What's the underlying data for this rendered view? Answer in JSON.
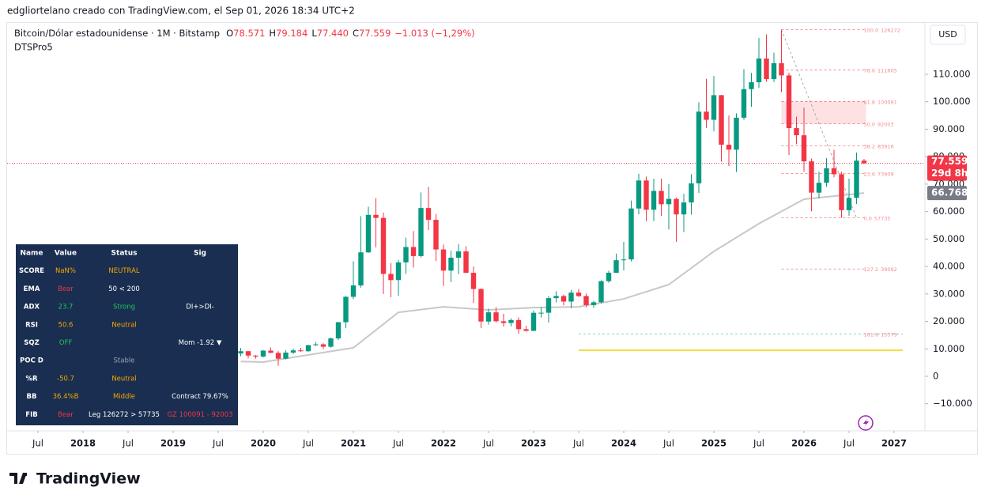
{
  "header": {
    "caption": "edgliortelano creado con TradingView.com, el Sep 01, 2026 18:34 UTC+2",
    "brand": "TradingView"
  },
  "chart_data": {
    "type": "candlestick",
    "legend": {
      "symbol": "Bitcoin/Dólar estadounidense · 1M · Bitstamp",
      "ohlc": [
        {
          "key": "O",
          "value": "78.571"
        },
        {
          "key": "H",
          "value": "79.184"
        },
        {
          "key": "L",
          "value": "77.440"
        },
        {
          "key": "C",
          "value": "77.559"
        }
      ],
      "change": "−1.013 (−1,29%)",
      "indicator": "DTSPro5"
    },
    "currency": "USD",
    "up_color": "#089981",
    "down_color": "#f23645",
    "x": [
      "2019-10",
      "2019-11",
      "2019-12",
      "2020-01",
      "2020-02",
      "2020-03",
      "2020-04",
      "2020-05",
      "2020-06",
      "2020-07",
      "2020-08",
      "2020-09",
      "2020-10",
      "2020-11",
      "2020-12",
      "2021-01",
      "2021-02",
      "2021-03",
      "2021-04",
      "2021-05",
      "2021-06",
      "2021-07",
      "2021-08",
      "2021-09",
      "2021-10",
      "2021-11",
      "2021-12",
      "2022-01",
      "2022-02",
      "2022-03",
      "2022-04",
      "2022-05",
      "2022-06",
      "2022-07",
      "2022-08",
      "2022-09",
      "2022-10",
      "2022-11",
      "2022-12",
      "2023-01",
      "2023-02",
      "2023-03",
      "2023-04",
      "2023-05",
      "2023-06",
      "2023-07",
      "2023-08",
      "2023-09",
      "2023-10",
      "2023-11",
      "2023-12",
      "2024-01",
      "2024-02",
      "2024-03",
      "2024-04",
      "2024-05",
      "2024-06",
      "2024-07",
      "2024-08",
      "2024-09",
      "2024-10",
      "2024-11",
      "2024-12",
      "2025-01",
      "2025-02",
      "2025-03",
      "2025-04",
      "2025-05",
      "2025-06",
      "2025-07",
      "2025-08",
      "2025-09",
      "2025-10",
      "2025-11",
      "2025-12",
      "2026-01",
      "2026-02",
      "2026-03",
      "2026-04",
      "2026-05",
      "2026-06",
      "2026-07",
      "2026-08",
      "2026-09"
    ],
    "open": [
      8300,
      9150,
      7550,
      7190,
      9350,
      8540,
      6410,
      8630,
      9450,
      9140,
      11340,
      11650,
      10780,
      13800,
      19700,
      28950,
      33100,
      45150,
      58800,
      57700,
      37300,
      35050,
      41500,
      47100,
      43800,
      61300,
      57000,
      46200,
      38500,
      43200,
      45500,
      37700,
      31800,
      19950,
      23300,
      20050,
      19420,
      20500,
      17170,
      16550,
      23130,
      23150,
      28470,
      29250,
      27220,
      30480,
      29230,
      25940,
      26960,
      34660,
      37720,
      42280,
      42580,
      61130,
      71330,
      60670,
      67530,
      62680,
      64620,
      58970,
      63330,
      70290,
      96400,
      93430,
      102400,
      84350,
      82550,
      94200,
      104600,
      107100,
      115750,
      108250,
      114050,
      109600,
      90400,
      87800,
      78300,
      66900,
      70500,
      75800,
      73600,
      60500,
      65000,
      78571
    ],
    "high": [
      10350,
      9270,
      7750,
      9580,
      10500,
      9190,
      9470,
      10080,
      10380,
      11450,
      12480,
      12060,
      14100,
      19850,
      29300,
      41950,
      58350,
      61800,
      64900,
      59600,
      41300,
      42400,
      50500,
      52900,
      67000,
      69000,
      59100,
      47990,
      45800,
      48200,
      47400,
      40000,
      31990,
      24650,
      25200,
      22800,
      21100,
      21480,
      18390,
      23960,
      25250,
      29200,
      31000,
      29820,
      31390,
      31800,
      30200,
      27480,
      35000,
      38430,
      44700,
      48970,
      64000,
      73800,
      72800,
      72000,
      72000,
      70000,
      65100,
      66500,
      73620,
      99800,
      108350,
      109350,
      102500,
      95000,
      95800,
      111900,
      110500,
      123200,
      124500,
      117900,
      126272,
      110600,
      94600,
      97900,
      79300,
      74500,
      79500,
      82500,
      74500,
      72000,
      81500,
      79184
    ],
    "low": [
      7300,
      6500,
      6430,
      6850,
      8450,
      3850,
      6150,
      8100,
      8900,
      8960,
      10980,
      9850,
      10430,
      13200,
      17580,
      28130,
      32300,
      44950,
      47000,
      30000,
      28800,
      29300,
      37300,
      39600,
      43300,
      53250,
      42000,
      32950,
      34300,
      37200,
      37600,
      26700,
      17600,
      18800,
      19600,
      18150,
      18200,
      15480,
      16280,
      16500,
      21400,
      19570,
      26940,
      25810,
      24800,
      28860,
      25200,
      24900,
      26540,
      34100,
      37600,
      38500,
      41880,
      59000,
      56500,
      56550,
      58400,
      53500,
      49000,
      52550,
      58900,
      66800,
      90500,
      89250,
      78200,
      76600,
      74400,
      93400,
      98200,
      105100,
      107300,
      107200,
      103500,
      80600,
      84500,
      74500,
      60100,
      64800,
      69000,
      72500,
      57735,
      58500,
      62800,
      77440
    ],
    "close": [
      9150,
      7550,
      7190,
      9350,
      8540,
      6410,
      8630,
      9450,
      9140,
      11340,
      11650,
      10780,
      13800,
      19700,
      28950,
      33100,
      45150,
      58800,
      57700,
      37300,
      35050,
      41500,
      47100,
      43800,
      61300,
      57000,
      46200,
      38500,
      43200,
      45500,
      37700,
      31800,
      19950,
      23300,
      20050,
      19420,
      20500,
      17170,
      16550,
      23130,
      23150,
      28470,
      29250,
      27220,
      30480,
      29230,
      25940,
      26960,
      34660,
      37720,
      42280,
      42580,
      61130,
      71330,
      60670,
      67530,
      62680,
      64620,
      58970,
      63330,
      70290,
      96400,
      93430,
      102400,
      84350,
      82550,
      94200,
      104600,
      107100,
      115750,
      108250,
      114050,
      109600,
      90400,
      87800,
      78300,
      66900,
      70500,
      75800,
      73600,
      60500,
      65000,
      78571,
      77559
    ],
    "ma": {
      "color": "#c8c8c8",
      "x": [
        "2019-10",
        "2020-01",
        "2021-01",
        "2021-07",
        "2022-01",
        "2022-07",
        "2023-01",
        "2023-07",
        "2024-01",
        "2024-07",
        "2025-01",
        "2025-07",
        "2026-01",
        "2026-09"
      ],
      "values": [
        5400,
        5200,
        10400,
        23300,
        25300,
        24200,
        25000,
        25300,
        28200,
        33400,
        45500,
        55600,
        64500,
        66768
      ]
    },
    "poc": {
      "value": 9500,
      "color": "#f0d000",
      "from": "2023-07"
    },
    "fib": {
      "from": "2025-10",
      "to": "2026-08",
      "levels": [
        {
          "level": "100.0",
          "value": 126272
        },
        {
          "level": "78.6",
          "value": 111605
        },
        {
          "level": "61.8",
          "value": 100091
        },
        {
          "level": "50.0",
          "value": 92003
        },
        {
          "level": "38.2",
          "value": 83916
        },
        {
          "level": "23.6",
          "value": 73909
        },
        {
          "level": "0.0",
          "value": 57735
        },
        {
          "level": "127.2",
          "value": 39092
        },
        {
          "level": "161.8",
          "value": 15379
        }
      ]
    },
    "price_label": {
      "value": 77559,
      "label": "77.559",
      "countdown": "29d 8h"
    },
    "ma_label": {
      "value": 66768,
      "label": "66.768"
    },
    "ylim": [
      -19870,
      127280
    ],
    "yticks": [
      {
        "value": -10000,
        "label": "−10.000"
      },
      0,
      {
        "value": 10000,
        "label": "10.000"
      },
      {
        "value": 20000,
        "label": "20.000"
      },
      {
        "value": 30000,
        "label": "30.000"
      },
      {
        "value": 40000,
        "label": "40.000"
      },
      {
        "value": 50000,
        "label": "50.000"
      },
      {
        "value": 60000,
        "label": "60.000"
      },
      {
        "value": 70000,
        "label": "70.000"
      },
      {
        "value": 80000,
        "label": "80.000"
      },
      {
        "value": 90000,
        "label": "90.000"
      },
      {
        "value": 100000,
        "label": "100.000"
      },
      {
        "value": 110000,
        "label": "110.000"
      }
    ],
    "xticks": [
      {
        "value": "2017-07",
        "label": "Jul"
      },
      {
        "value": "2018-01",
        "label": "2018"
      },
      {
        "value": "2018-07",
        "label": "Jul"
      },
      {
        "value": "2019-01",
        "label": "2019"
      },
      {
        "value": "2019-07",
        "label": "Jul"
      },
      {
        "value": "2020-01",
        "label": "2020"
      },
      {
        "value": "2020-07",
        "label": "Jul"
      },
      {
        "value": "2021-01",
        "label": "2021"
      },
      {
        "value": "2021-07",
        "label": "Jul"
      },
      {
        "value": "2022-01",
        "label": "2022"
      },
      {
        "value": "2022-07",
        "label": "Jul"
      },
      {
        "value": "2023-01",
        "label": "2023"
      },
      {
        "value": "2023-07",
        "label": "Jul"
      },
      {
        "value": "2024-01",
        "label": "2024"
      },
      {
        "value": "2024-07",
        "label": "Jul"
      },
      {
        "value": "2025-01",
        "label": "2025"
      },
      {
        "value": "2025-07",
        "label": "Jul"
      },
      {
        "value": "2026-01",
        "label": "2026"
      },
      {
        "value": "2026-07",
        "label": "Jul"
      },
      {
        "value": "2027-01",
        "label": "2027"
      }
    ],
    "grid": false
  },
  "table": {
    "columns": [
      "Name",
      "Value",
      "Status",
      "Sig"
    ],
    "rows": [
      {
        "name": "SCORE",
        "value": "NaN%",
        "value_color": "#f7a600",
        "status": "NEUTRAL",
        "status_color": "#f7a600"
      },
      {
        "name": "EMA",
        "value": "Bear",
        "value_color": "#f23645",
        "status": "50 < 200",
        "status_color": "#ffffff"
      },
      {
        "name": "ADX",
        "value": "23.7",
        "value_color": "#22c55e",
        "status": "Strong",
        "status_color": "#22c55e",
        "sig": "DI+>DI-",
        "sig_color": "#ffffff"
      },
      {
        "name": "RSI",
        "value": "50.6",
        "value_color": "#f7a600",
        "status": "Neutral",
        "status_color": "#f7a600"
      },
      {
        "name": "SQZ",
        "value": "OFF",
        "value_color": "#22c55e",
        "sig": "Mom -1.92 ▼",
        "sig_color": "#ffffff"
      },
      {
        "name": "POC D",
        "status": "Stable",
        "status_color": "#9aa4b4"
      },
      {
        "name": "%R",
        "value": "-50.7",
        "value_color": "#f7a600",
        "status": "Neutral",
        "status_color": "#f7a600"
      },
      {
        "name": "BB",
        "value": "36.4%B",
        "value_color": "#f7a600",
        "status": "Middle",
        "status_color": "#f7a600",
        "sig": "Contract 79.67%",
        "sig_color": "#ffffff"
      },
      {
        "name": "FIB",
        "value": "Bear",
        "value_color": "#f23645",
        "status": "Leg 126272 > 57735",
        "status_color": "#ffffff",
        "sig": "GZ 100091 - 92003",
        "sig_color": "#f23645"
      }
    ]
  }
}
